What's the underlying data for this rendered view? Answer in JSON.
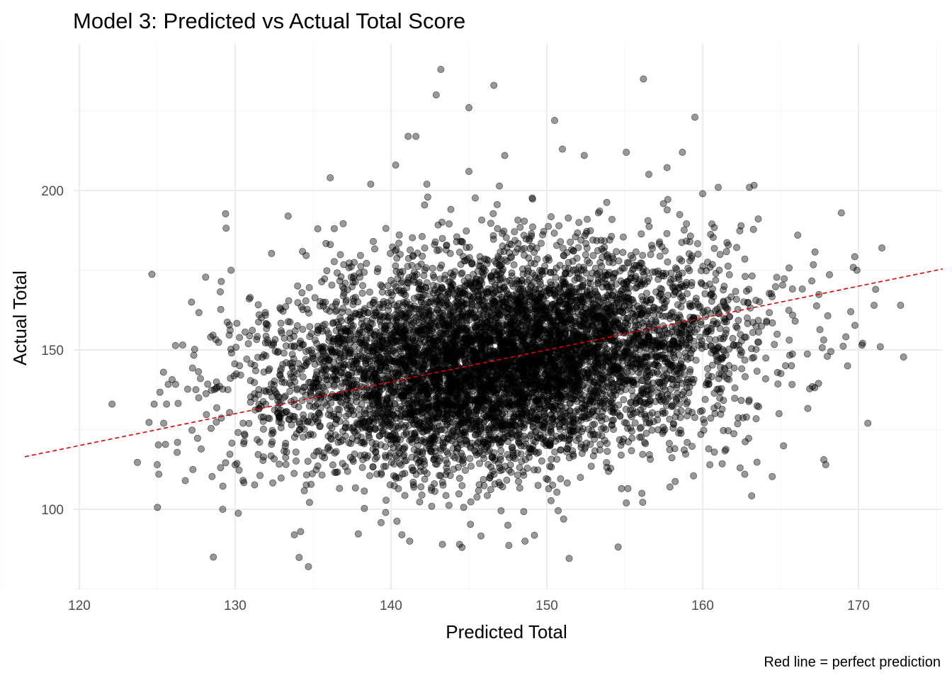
{
  "chart_data": {
    "type": "scatter",
    "title": "Model 3: Predicted vs Actual Total Score",
    "xlabel": "Predicted Total",
    "ylabel": "Actual Total",
    "caption": "Red line = perfect prediction",
    "xlim": [
      120,
      175
    ],
    "ylim": [
      75,
      238
    ],
    "x_ticks": [
      120,
      130,
      140,
      150,
      160,
      170
    ],
    "y_ticks": [
      100,
      150,
      200
    ],
    "grid": true,
    "reference_line": {
      "type": "identity",
      "slope": 1,
      "intercept": 0,
      "color": "#e00000",
      "dash": "dashed"
    },
    "point_color": "#000000",
    "point_alpha": 0.4,
    "n_points_approx": 7000,
    "highlight_points": [
      {
        "x": 122.1,
        "y": 133
      },
      {
        "x": 124.8,
        "y": 133
      },
      {
        "x": 125.0,
        "y": 114
      },
      {
        "x": 125.1,
        "y": 111
      },
      {
        "x": 125.4,
        "y": 143
      },
      {
        "x": 125.6,
        "y": 133
      },
      {
        "x": 126.3,
        "y": 121
      },
      {
        "x": 126.8,
        "y": 109
      },
      {
        "x": 127.2,
        "y": 165
      },
      {
        "x": 128.6,
        "y": 85
      },
      {
        "x": 129.2,
        "y": 100
      },
      {
        "x": 133.4,
        "y": 192
      },
      {
        "x": 133.8,
        "y": 92
      },
      {
        "x": 134.2,
        "y": 93
      },
      {
        "x": 134.7,
        "y": 82
      },
      {
        "x": 136.1,
        "y": 204
      },
      {
        "x": 138.7,
        "y": 202
      },
      {
        "x": 140.3,
        "y": 208
      },
      {
        "x": 140.7,
        "y": 92
      },
      {
        "x": 141.1,
        "y": 217
      },
      {
        "x": 141.6,
        "y": 217
      },
      {
        "x": 141.2,
        "y": 90
      },
      {
        "x": 142.3,
        "y": 202
      },
      {
        "x": 142.9,
        "y": 230
      },
      {
        "x": 143.2,
        "y": 238
      },
      {
        "x": 143.3,
        "y": 89
      },
      {
        "x": 144.4,
        "y": 89
      },
      {
        "x": 145.0,
        "y": 226
      },
      {
        "x": 145.0,
        "y": 206
      },
      {
        "x": 146.6,
        "y": 233
      },
      {
        "x": 147.3,
        "y": 211
      },
      {
        "x": 147.5,
        "y": 95
      },
      {
        "x": 148.6,
        "y": 90
      },
      {
        "x": 150.5,
        "y": 222
      },
      {
        "x": 151.0,
        "y": 213
      },
      {
        "x": 152.4,
        "y": 211
      },
      {
        "x": 155.1,
        "y": 102
      },
      {
        "x": 155.1,
        "y": 212
      },
      {
        "x": 156.1,
        "y": 105
      },
      {
        "x": 156.2,
        "y": 235
      },
      {
        "x": 159.5,
        "y": 223
      },
      {
        "x": 158.7,
        "y": 212
      },
      {
        "x": 157.9,
        "y": 107
      },
      {
        "x": 162.4,
        "y": 113
      },
      {
        "x": 162.7,
        "y": 111
      },
      {
        "x": 167.9,
        "y": 114
      },
      {
        "x": 168.9,
        "y": 193
      },
      {
        "x": 169.3,
        "y": 145
      },
      {
        "x": 170.6,
        "y": 127
      },
      {
        "x": 171.4,
        "y": 151
      },
      {
        "x": 171.5,
        "y": 182
      },
      {
        "x": 172.7,
        "y": 164
      },
      {
        "x": 171.0,
        "y": 164
      },
      {
        "x": 171.1,
        "y": 169
      },
      {
        "x": 169.9,
        "y": 175
      },
      {
        "x": 169.5,
        "y": 162
      },
      {
        "x": 168.0,
        "y": 148
      },
      {
        "x": 166.1,
        "y": 186
      },
      {
        "x": 164.9,
        "y": 130
      },
      {
        "x": 130.9,
        "y": 166
      },
      {
        "x": 135.3,
        "y": 188
      },
      {
        "x": 163.0,
        "y": 201
      },
      {
        "x": 161.0,
        "y": 201
      },
      {
        "x": 160.0,
        "y": 199
      }
    ]
  }
}
